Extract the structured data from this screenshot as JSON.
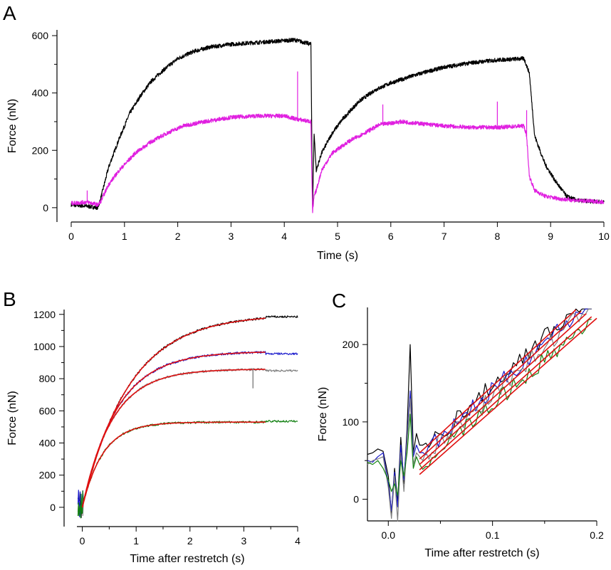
{
  "chart_data": [
    {
      "panel": "A",
      "type": "line",
      "xlabel": "Time (s)",
      "ylabel": "Force (nN)",
      "xlim": [
        0,
        10
      ],
      "ylim": [
        -50,
        620
      ],
      "xticks": [
        0,
        1,
        2,
        3,
        4,
        5,
        6,
        7,
        8,
        9,
        10
      ],
      "yticks": [
        0,
        200,
        400,
        600
      ],
      "series": [
        {
          "name": "black trace",
          "color": "#000000",
          "x": [
            0.0,
            0.3,
            0.5,
            0.55,
            0.7,
            0.9,
            1.1,
            1.3,
            1.5,
            1.7,
            2.0,
            2.3,
            2.6,
            3.0,
            3.4,
            3.8,
            4.2,
            4.5,
            4.53,
            4.56,
            4.6,
            4.7,
            4.9,
            5.1,
            5.4,
            5.7,
            6.0,
            6.5,
            7.0,
            7.5,
            8.0,
            8.5,
            8.6,
            8.7,
            8.9,
            9.1,
            9.3,
            9.5,
            10.0
          ],
          "y": [
            10,
            5,
            0,
            30,
            140,
            240,
            330,
            390,
            440,
            475,
            520,
            545,
            560,
            570,
            575,
            580,
            585,
            570,
            -10,
            260,
            130,
            190,
            260,
            310,
            370,
            410,
            435,
            465,
            490,
            505,
            515,
            520,
            470,
            250,
            150,
            90,
            40,
            25,
            20
          ]
        },
        {
          "name": "magenta trace",
          "color": "#e020e0",
          "x": [
            0.0,
            0.3,
            0.5,
            0.55,
            0.7,
            0.9,
            1.2,
            1.5,
            1.8,
            2.1,
            2.5,
            3.0,
            3.5,
            4.0,
            4.2,
            4.5,
            4.53,
            4.56,
            4.6,
            4.7,
            4.9,
            5.2,
            5.5,
            5.8,
            6.2,
            7.0,
            7.5,
            8.0,
            8.5,
            8.55,
            8.6,
            8.7,
            8.9,
            9.2,
            9.5,
            10.0
          ],
          "y": [
            15,
            20,
            10,
            20,
            80,
            130,
            190,
            230,
            260,
            285,
            300,
            315,
            320,
            320,
            310,
            300,
            -20,
            40,
            60,
            130,
            190,
            230,
            260,
            290,
            300,
            285,
            280,
            280,
            285,
            250,
            110,
            60,
            40,
            30,
            25,
            20
          ]
        }
      ]
    },
    {
      "panel": "B",
      "type": "line",
      "xlabel": "Time after restretch (s)",
      "ylabel": "Force (nN)",
      "xlim": [
        -0.1,
        4
      ],
      "ylim": [
        -120,
        1230
      ],
      "xticks": [
        0,
        1,
        2,
        3,
        4
      ],
      "yticks": [
        0,
        200,
        400,
        600,
        800,
        1000,
        1200
      ],
      "series": [
        {
          "name": "black",
          "color": "#000000",
          "plateau": 1200,
          "k": 1.15,
          "end": 1185
        },
        {
          "name": "blue",
          "color": "#1a1acc",
          "plateau": 970,
          "k": 1.55,
          "end": 955
        },
        {
          "name": "gray",
          "color": "#808080",
          "plateau": 860,
          "k": 1.8,
          "end": 850
        },
        {
          "name": "green",
          "color": "#128012",
          "plateau": 530,
          "k": 2.6,
          "end": 535
        }
      ],
      "fits": {
        "color": "#e01010",
        "x_end": 3.4
      }
    },
    {
      "panel": "C",
      "type": "line",
      "xlabel": "Time after restretch (s)",
      "ylabel": "Force (nN)",
      "xlim": [
        -0.02,
        0.2
      ],
      "ylim": [
        -28,
        248
      ],
      "xticks": [
        0.0,
        0.1,
        0.2
      ],
      "xticklabels": [
        "0.0",
        "0.1",
        "0.2"
      ],
      "yticks": [
        0,
        100,
        200
      ],
      "early": {
        "x": [
          -0.02,
          -0.015,
          -0.01,
          -0.005,
          0.0,
          0.003,
          0.006,
          0.009,
          0.012,
          0.015,
          0.018,
          0.021,
          0.024,
          0.027,
          0.03
        ],
        "black": [
          58,
          60,
          65,
          62,
          30,
          -20,
          40,
          -5,
          80,
          20,
          90,
          200,
          60,
          85,
          70
        ],
        "blue": [
          50,
          48,
          55,
          60,
          20,
          -15,
          35,
          -10,
          70,
          25,
          80,
          140,
          55,
          70,
          60
        ],
        "gray": [
          45,
          50,
          52,
          55,
          15,
          -25,
          30,
          -28,
          60,
          10,
          75,
          130,
          45,
          60,
          55
        ],
        "green": [
          48,
          45,
          50,
          40,
          25,
          10,
          20,
          5,
          50,
          30,
          60,
          110,
          40,
          55,
          45
        ]
      },
      "series": [
        {
          "name": "black",
          "color": "#000000",
          "y_at_0.03": 60,
          "slope": 1250
        },
        {
          "name": "blue",
          "color": "#1a1acc",
          "y_at_0.03": 55,
          "slope": 1230
        },
        {
          "name": "gray",
          "color": "#808080",
          "y_at_0.03": 50,
          "slope": 1220
        },
        {
          "name": "green",
          "color": "#128012",
          "y_at_0.03": 42,
          "slope": 1150
        }
      ],
      "fits": {
        "color": "#e01010",
        "lines": [
          {
            "x0": 0.03,
            "y0": 60,
            "x1": 0.18,
            "y1": 245
          },
          {
            "x0": 0.03,
            "y0": 52,
            "x1": 0.185,
            "y1": 243
          },
          {
            "x0": 0.03,
            "y0": 45,
            "x1": 0.19,
            "y1": 240
          },
          {
            "x0": 0.03,
            "y0": 38,
            "x1": 0.195,
            "y1": 236
          },
          {
            "x0": 0.03,
            "y0": 32,
            "x1": 0.2,
            "y1": 234
          }
        ]
      }
    }
  ]
}
